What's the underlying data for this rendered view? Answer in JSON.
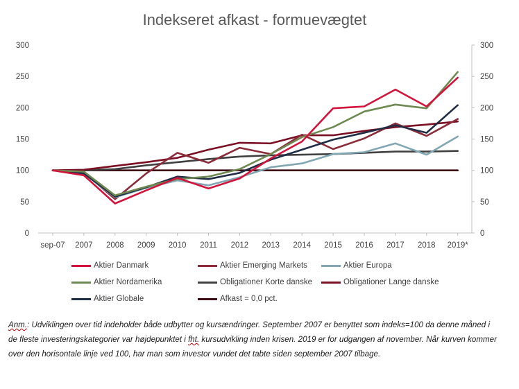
{
  "chart_data": {
    "type": "line",
    "title": "Indekseret afkast - formuevægtet",
    "categories": [
      "sep-07",
      "2007",
      "2008",
      "2009",
      "2010",
      "2011",
      "2012",
      "2013",
      "2014",
      "2015",
      "2016",
      "2017",
      "2018",
      "2019*"
    ],
    "ylim": [
      0,
      300
    ],
    "yticks": [
      0,
      50,
      100,
      150,
      200,
      250,
      300
    ],
    "secondary_yticks": [
      0,
      50,
      100,
      150,
      200,
      250,
      300
    ],
    "grid": false,
    "legend_position": "bottom",
    "series": [
      {
        "name": "Aktier Danmark",
        "color": "#d2143c",
        "values": [
          100,
          92,
          47,
          68,
          88,
          71,
          87,
          119,
          146,
          199,
          202,
          229,
          202,
          248
        ]
      },
      {
        "name": "Aktier Emerging Markets",
        "color": "#8b2c3a",
        "values": [
          100,
          97,
          54,
          95,
          128,
          112,
          136,
          126,
          157,
          134,
          151,
          175,
          155,
          182
        ]
      },
      {
        "name": "Aktier Europa",
        "color": "#82a7b3",
        "values": [
          100,
          95,
          57,
          72,
          84,
          76,
          89,
          105,
          111,
          126,
          129,
          143,
          125,
          154
        ]
      },
      {
        "name": "Aktier Nordamerika",
        "color": "#6e8a52",
        "values": [
          100,
          98,
          60,
          74,
          86,
          90,
          102,
          126,
          153,
          169,
          194,
          205,
          199,
          257
        ]
      },
      {
        "name": "Obligationer Korte danske",
        "color": "#404040",
        "values": [
          100,
          100,
          102,
          108,
          113,
          118,
          122,
          124,
          125,
          126,
          128,
          130,
          130,
          131
        ]
      },
      {
        "name": "Obligationer Lange danske",
        "color": "#7a0f24",
        "values": [
          100,
          101,
          107,
          113,
          120,
          133,
          144,
          143,
          156,
          156,
          163,
          169,
          173,
          178
        ]
      },
      {
        "name": "Aktier Globale",
        "color": "#1f2d45",
        "values": [
          100,
          95,
          58,
          73,
          90,
          86,
          96,
          117,
          133,
          149,
          160,
          172,
          160,
          204
        ]
      },
      {
        "name": "Afkast = 0,0 pct.",
        "color": "#3d0b14",
        "values": [
          100,
          100,
          100,
          100,
          100,
          100,
          100,
          100,
          100,
          100,
          100,
          100,
          100,
          100
        ]
      }
    ]
  },
  "note": {
    "prefix": "Anm.",
    "text_1": ": Udviklingen over tid indeholder både udbytter og kursændringer. September 2007 er benyttet som indeks=100 da denne måned i de fleste investeringskategorier var højdepunktet i",
    "squiggle": "fht.",
    "text_2": " kursudvikling inden krisen. 2019 er for udgangen af november. Når kurven kommer over den horisontale linje ved 100, har man som investor vundet det tabte siden september 2007 tilbage."
  }
}
